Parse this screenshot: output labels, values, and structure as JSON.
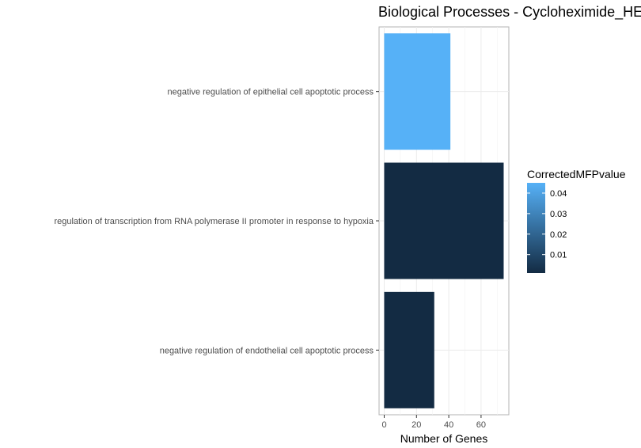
{
  "chart_data": {
    "type": "bar",
    "orientation": "horizontal",
    "title": "Biological Processes - Cycloheximide_HE",
    "xlabel": "Number of Genes",
    "ylabel": "",
    "xlim": [
      0,
      77
    ],
    "x_ticks": [
      0,
      20,
      40,
      60
    ],
    "grid": true,
    "categories": [
      "negative regulation of epithelial cell apoptotic process",
      "regulation of transcription from RNA polymerase II promoter in response to hypoxia",
      "negative regulation of endothelial cell apoptotic process"
    ],
    "values": [
      41,
      74,
      31
    ],
    "color_values": [
      0.045,
      0.001,
      0.001
    ],
    "legend": {
      "title": "CorrectedMFPvalue",
      "placement": "right",
      "ticks": [
        "0.04",
        "0.03",
        "0.02",
        "0.01"
      ],
      "tick_values": [
        0.04,
        0.03,
        0.02,
        0.01
      ],
      "range": [
        0.001,
        0.045
      ],
      "color_low": "#132B43",
      "color_high": "#56B1F7"
    }
  }
}
